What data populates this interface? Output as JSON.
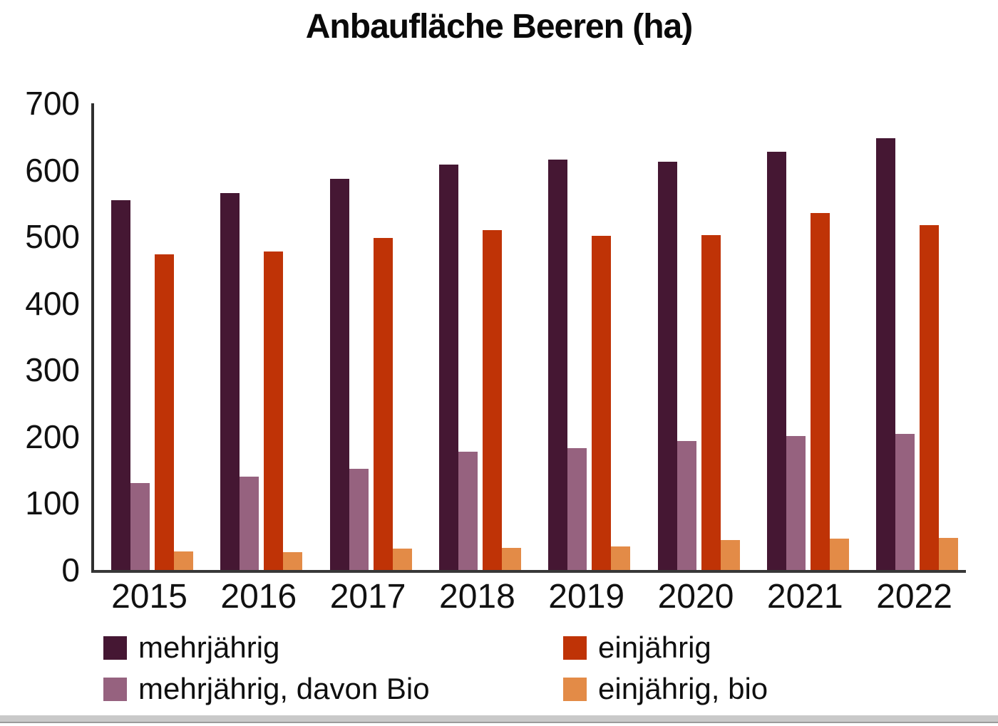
{
  "chart_data": {
    "type": "bar",
    "title": "Anbaufläche Beeren (ha)",
    "xlabel": "",
    "ylabel": "",
    "categories": [
      "2015",
      "2016",
      "2017",
      "2018",
      "2019",
      "2020",
      "2021",
      "2022"
    ],
    "series": [
      {
        "name": "mehrjährig",
        "color": "#451733",
        "values": [
          555,
          565,
          587,
          608,
          616,
          612,
          627,
          648
        ]
      },
      {
        "name": "einjährig",
        "color": "#bf3306",
        "values": [
          473,
          478,
          498,
          510,
          501,
          502,
          535,
          517
        ]
      },
      {
        "name": "mehrjährig, davon Bio",
        "color": "#96627f",
        "values": [
          130,
          140,
          152,
          177,
          183,
          193,
          201,
          204
        ]
      },
      {
        "name": "einjährig, bio",
        "color": "#e38b47",
        "values": [
          28,
          27,
          32,
          33,
          35,
          45,
          47,
          48
        ]
      }
    ],
    "series_draw_order": [
      0,
      2,
      1,
      3
    ],
    "ylim": [
      0,
      700
    ],
    "yticks": [
      0,
      100,
      200,
      300,
      400,
      500,
      600,
      700
    ],
    "grid": false,
    "legend_position": "bottom",
    "legend_columns": [
      [
        "mehrjährig",
        "mehrjährig, davon Bio"
      ],
      [
        "einjährig",
        "einjährig, bio"
      ]
    ]
  }
}
